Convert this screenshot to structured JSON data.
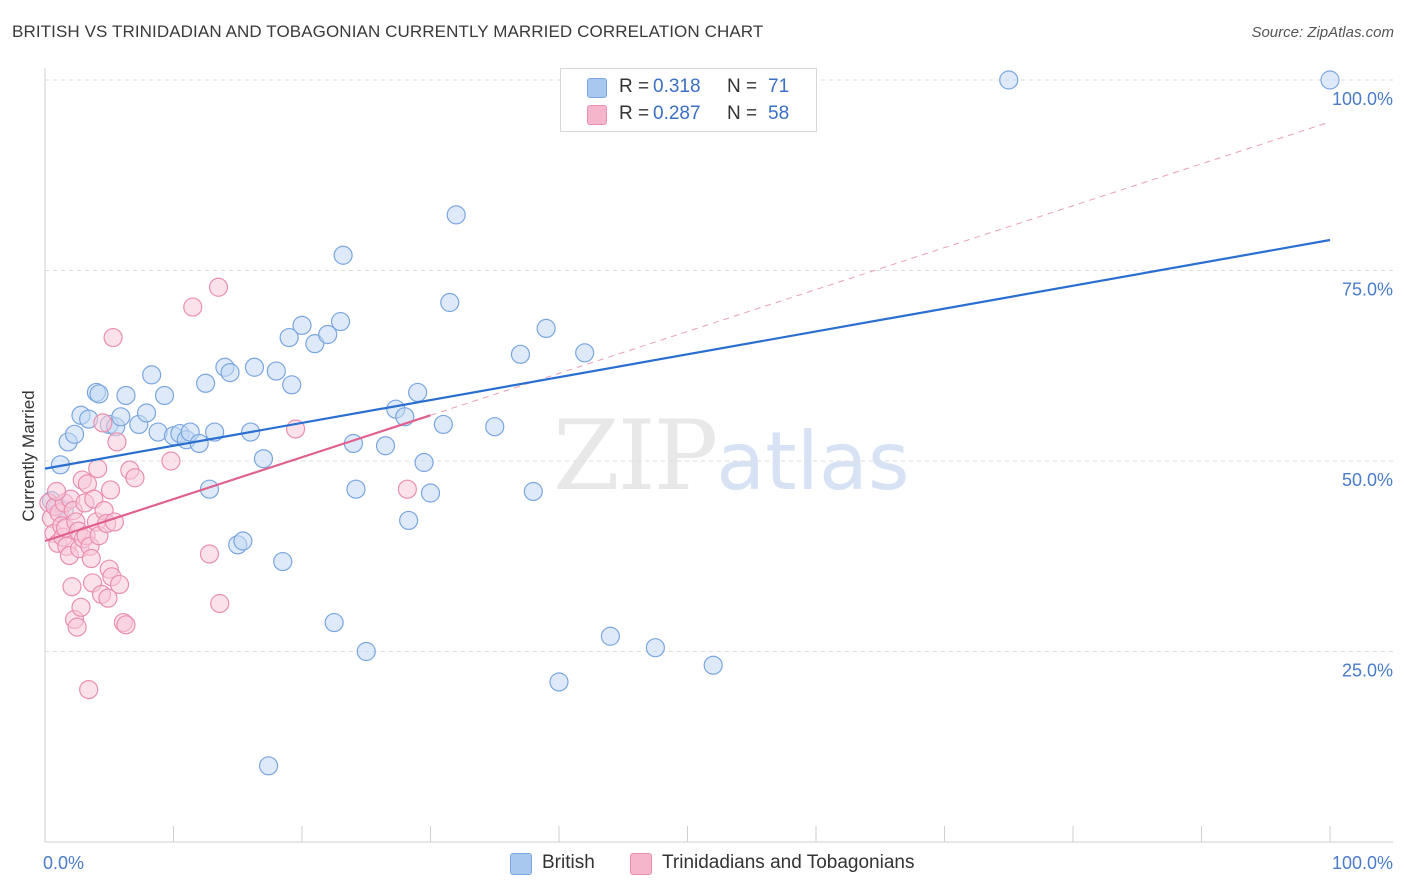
{
  "header": {
    "title": "BRITISH VS TRINIDADIAN AND TOBAGONIAN CURRENTLY MARRIED CORRELATION CHART",
    "source": "Source: ZipAtlas.com"
  },
  "watermark": {
    "zip": "ZIP",
    "atlas": "atlas"
  },
  "legend": {
    "rows": [
      {
        "r_label": "R =",
        "r_value": "0.318",
        "n_label": "N =",
        "n_value": "71",
        "color": "#a9c8ef"
      },
      {
        "r_label": "R =",
        "r_value": "0.287",
        "n_label": "N =",
        "n_value": "58",
        "color": "#f5b6cb"
      }
    ]
  },
  "bottom_legend": {
    "items": [
      {
        "label": "British",
        "color": "#a9c8ef"
      },
      {
        "label": "Trinidadians and Tobagonians",
        "color": "#f5b6cb"
      }
    ]
  },
  "chart_data": {
    "type": "scatter",
    "title": "BRITISH VS TRINIDADIAN AND TOBAGONIAN CURRENTLY MARRIED CORRELATION CHART",
    "xlabel": "",
    "ylabel": "Currently Married",
    "xlim": [
      0,
      100
    ],
    "ylim": [
      0,
      105
    ],
    "x_tick_labels": [
      "0.0%",
      "100.0%"
    ],
    "y_ticks": [
      25,
      50,
      75,
      100
    ],
    "y_tick_labels": [
      "25.0%",
      "50.0%",
      "75.0%",
      "100.0%"
    ],
    "grid": true,
    "legend_position": "top-center",
    "series": [
      {
        "name": "British",
        "color": "#7aa6e0",
        "fill": "#c2d8f4",
        "trend": {
          "x": [
            0,
            100
          ],
          "y": [
            49,
            79
          ],
          "color": "#2a6fcf"
        },
        "points": [
          [
            1.2,
            49.5
          ],
          [
            1.8,
            52.5
          ],
          [
            2.3,
            53.5
          ],
          [
            2.8,
            56
          ],
          [
            3.4,
            55.5
          ],
          [
            4,
            59
          ],
          [
            4.2,
            58.8
          ],
          [
            5,
            54.8
          ],
          [
            5.5,
            54.5
          ],
          [
            5.9,
            55.8
          ],
          [
            6.3,
            58.6
          ],
          [
            7.3,
            54.8
          ],
          [
            7.9,
            56.3
          ],
          [
            8.3,
            61.3
          ],
          [
            8.8,
            53.8
          ],
          [
            9.3,
            58.6
          ],
          [
            10,
            53.3
          ],
          [
            10.5,
            53.6
          ],
          [
            11,
            52.8
          ],
          [
            11.3,
            53.8
          ],
          [
            12,
            52.3
          ],
          [
            12.5,
            60.2
          ],
          [
            12.8,
            46.3
          ],
          [
            13.2,
            53.8
          ],
          [
            14,
            62.3
          ],
          [
            14.4,
            61.6
          ],
          [
            15,
            39
          ],
          [
            15.4,
            39.5
          ],
          [
            16,
            53.8
          ],
          [
            16.3,
            62.3
          ],
          [
            17,
            50.3
          ],
          [
            18,
            61.8
          ],
          [
            18.5,
            36.8
          ],
          [
            19,
            66.2
          ],
          [
            19.2,
            60
          ],
          [
            20,
            67.8
          ],
          [
            21,
            65.4
          ],
          [
            22,
            66.6
          ],
          [
            22.5,
            28.8
          ],
          [
            23,
            68.3
          ],
          [
            23.2,
            77
          ],
          [
            24,
            52.3
          ],
          [
            24.2,
            46.3
          ],
          [
            25,
            25
          ],
          [
            26.5,
            52
          ],
          [
            27.3,
            56.8
          ],
          [
            28,
            55.8
          ],
          [
            28.3,
            42.2
          ],
          [
            29,
            59
          ],
          [
            29.5,
            49.8
          ],
          [
            30,
            45.8
          ],
          [
            31,
            54.8
          ],
          [
            31.5,
            70.8
          ],
          [
            32,
            82.3
          ],
          [
            35,
            54.5
          ],
          [
            37,
            64
          ],
          [
            38,
            46
          ],
          [
            39,
            67.4
          ],
          [
            40,
            21
          ],
          [
            42,
            64.2
          ],
          [
            44,
            27
          ],
          [
            47.5,
            25.5
          ],
          [
            48,
            100
          ],
          [
            49,
            95
          ],
          [
            52,
            23.2
          ],
          [
            75,
            100
          ],
          [
            100,
            100
          ],
          [
            17.4,
            10
          ],
          [
            0.5,
            44.8
          ],
          [
            1,
            44
          ],
          [
            1.5,
            43.5
          ]
        ]
      },
      {
        "name": "Trinidadians and Tobagonians",
        "color": "#ea8fb0",
        "fill": "#f8c8d8",
        "trend": {
          "x": [
            0,
            30
          ],
          "y": [
            39.5,
            56
          ],
          "color": "#e0608f"
        },
        "extrapolation": {
          "x": [
            30,
            100
          ],
          "y": [
            56,
            94.5
          ],
          "color": "#e8a0b8"
        },
        "points": [
          [
            0.3,
            44.5
          ],
          [
            0.5,
            42.5
          ],
          [
            0.7,
            40.5
          ],
          [
            0.8,
            44
          ],
          [
            1,
            39.2
          ],
          [
            1.1,
            43.2
          ],
          [
            1.3,
            41.5
          ],
          [
            1.4,
            40
          ],
          [
            1.5,
            44.5
          ],
          [
            1.6,
            41.2
          ],
          [
            1.7,
            38.8
          ],
          [
            1.9,
            37.6
          ],
          [
            2,
            45
          ],
          [
            2.1,
            33.5
          ],
          [
            2.2,
            43.5
          ],
          [
            2.3,
            29.2
          ],
          [
            2.4,
            42
          ],
          [
            2.5,
            28.2
          ],
          [
            2.6,
            40.8
          ],
          [
            2.7,
            38.5
          ],
          [
            2.8,
            30.8
          ],
          [
            2.9,
            47.5
          ],
          [
            3,
            39.8
          ],
          [
            3.1,
            44.5
          ],
          [
            3.2,
            40.2
          ],
          [
            3.3,
            47
          ],
          [
            3.4,
            20
          ],
          [
            3.5,
            38.8
          ],
          [
            3.6,
            37.2
          ],
          [
            3.7,
            34
          ],
          [
            3.8,
            45
          ],
          [
            4,
            42
          ],
          [
            4.1,
            49
          ],
          [
            4.2,
            40.2
          ],
          [
            4.4,
            32.5
          ],
          [
            4.5,
            55
          ],
          [
            4.6,
            43.5
          ],
          [
            4.8,
            41.8
          ],
          [
            4.9,
            32
          ],
          [
            5,
            35.8
          ],
          [
            5.1,
            46.2
          ],
          [
            5.2,
            34.8
          ],
          [
            5.3,
            66.2
          ],
          [
            5.4,
            42
          ],
          [
            5.6,
            52.5
          ],
          [
            5.8,
            33.8
          ],
          [
            6.1,
            28.8
          ],
          [
            6.3,
            28.5
          ],
          [
            6.6,
            48.8
          ],
          [
            7,
            47.8
          ],
          [
            9.8,
            50
          ],
          [
            11.5,
            70.2
          ],
          [
            12.8,
            37.8
          ],
          [
            13.5,
            72.8
          ],
          [
            13.6,
            31.3
          ],
          [
            19.5,
            54.2
          ],
          [
            28.2,
            46.3
          ],
          [
            0.9,
            46
          ]
        ]
      }
    ]
  }
}
